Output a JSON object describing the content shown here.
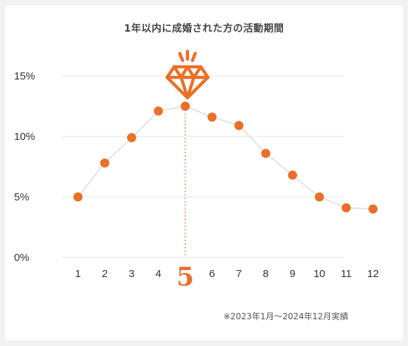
{
  "title": "1年以内に成婚された方の活動期間",
  "note": "※2023年1月〜2024年12月実績",
  "colors": {
    "accent": "#e8712a",
    "line": "#e3e3e3",
    "grid": "#e6e6e6",
    "text": "#333333"
  },
  "chart_data": {
    "type": "line",
    "categories": [
      "1",
      "2",
      "3",
      "4",
      "5",
      "6",
      "7",
      "8",
      "9",
      "10",
      "11",
      "12"
    ],
    "values": [
      5.0,
      7.8,
      9.9,
      12.1,
      12.5,
      11.6,
      10.9,
      8.6,
      6.8,
      5.0,
      4.1,
      4.0
    ],
    "yticks": [
      "0%",
      "5%",
      "10%",
      "15%"
    ],
    "ylim": [
      0,
      15
    ],
    "grid": true,
    "highlight": {
      "category": "5",
      "marker": "diamond-icon"
    }
  }
}
